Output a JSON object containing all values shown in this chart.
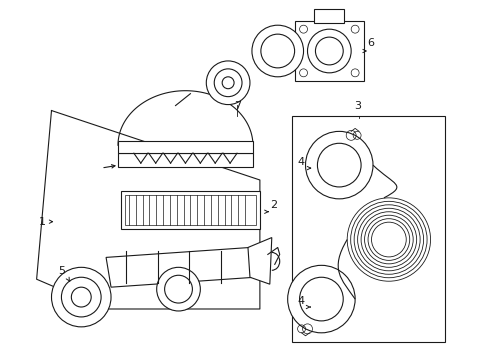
{
  "bg_color": "#ffffff",
  "line_color": "#1a1a1a",
  "lw": 0.8,
  "fig_w": 4.89,
  "fig_h": 3.6,
  "dpi": 100
}
